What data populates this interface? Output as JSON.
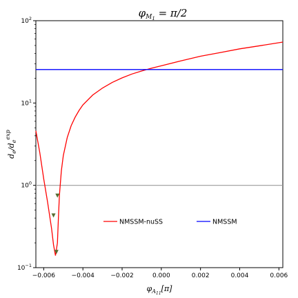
{
  "chart_data": {
    "type": "line",
    "title": "φ_{M1} = π/2",
    "xlabel": "φ_{A11}[π]",
    "ylabel": "d_e/d_e^exp",
    "xlim": [
      -0.0064,
      0.0062
    ],
    "ylim": [
      0.1,
      100
    ],
    "yscale": "log",
    "x_ticks": [
      -0.006,
      -0.004,
      -0.002,
      0.0,
      0.002,
      0.004,
      0.006
    ],
    "x_tick_labels": [
      "−0.006",
      "−0.004",
      "−0.002",
      "0.000",
      "0.002",
      "0.004",
      "0.006"
    ],
    "y_ticks": [
      0.1,
      1,
      10,
      100
    ],
    "reference_line": {
      "y": 1,
      "color": "#999999"
    },
    "series": [
      {
        "name": "NMSSM-nuSS",
        "color": "#ff0000",
        "x": [
          -0.0064,
          -0.0062,
          -0.006,
          -0.0058,
          -0.0056,
          -0.0055,
          -0.0054,
          -0.0053,
          -0.00525,
          -0.0052,
          -0.0051,
          -0.005,
          -0.0048,
          -0.0046,
          -0.0044,
          -0.0042,
          -0.004,
          -0.0035,
          -0.003,
          -0.0025,
          -0.002,
          -0.0015,
          -0.001,
          -0.0005,
          0.0,
          0.001,
          0.002,
          0.003,
          0.004,
          0.005,
          0.0062
        ],
        "y": [
          4.6,
          2.5,
          1.2,
          0.62,
          0.3,
          0.19,
          0.14,
          0.2,
          0.4,
          0.75,
          1.5,
          2.3,
          3.8,
          5.3,
          6.7,
          8.1,
          9.5,
          12.5,
          15.2,
          17.8,
          20.2,
          22.5,
          24.5,
          26.5,
          28.3,
          32.5,
          37.0,
          41.0,
          45.5,
          49.5,
          55.0
        ]
      },
      {
        "name": "NMSSM",
        "color": "#0000ff",
        "x": [
          -0.0064,
          0.0062
        ],
        "y": [
          25.5,
          25.5
        ]
      }
    ],
    "markers": [
      {
        "x": -0.0055,
        "y": 0.43,
        "color": "#556b2f"
      },
      {
        "x": -0.00535,
        "y": 0.155,
        "color": "#556b2f"
      },
      {
        "x": -0.0053,
        "y": 0.75,
        "color": "#556b2f"
      }
    ],
    "legend": [
      {
        "label": "NMSSM-nuSS",
        "color": "#ff0000"
      },
      {
        "label": "NMSSM",
        "color": "#0000ff"
      }
    ],
    "legend_placement": "lower-center"
  }
}
